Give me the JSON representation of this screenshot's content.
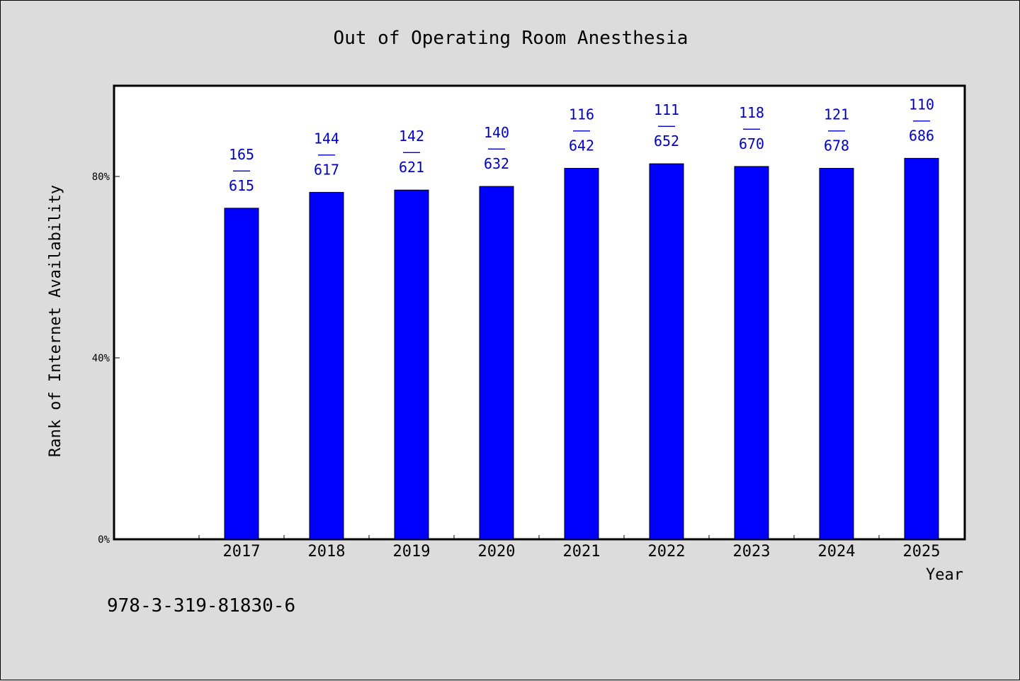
{
  "chart_data": {
    "type": "bar",
    "title": "Out of Operating Room Anesthesia",
    "xlabel": "Year",
    "ylabel": "Rank of Internet Availability",
    "categories": [
      "2017",
      "2018",
      "2019",
      "2020",
      "2021",
      "2022",
      "2023",
      "2024",
      "2025"
    ],
    "values": [
      73,
      76.5,
      77,
      77.8,
      81.8,
      82.8,
      82.2,
      81.8,
      84
    ],
    "ylim": [
      0,
      100
    ],
    "yticks": [
      0,
      40,
      80
    ],
    "ytick_labels": [
      "0%",
      "40%",
      "80%"
    ],
    "data_labels": [
      {
        "top": "165",
        "sep": "——",
        "bottom": "615"
      },
      {
        "top": "144",
        "sep": "——",
        "bottom": "617"
      },
      {
        "top": "142",
        "sep": "——",
        "bottom": "621"
      },
      {
        "top": "140",
        "sep": "——",
        "bottom": "632"
      },
      {
        "top": "116",
        "sep": "——",
        "bottom": "642"
      },
      {
        "top": "111",
        "sep": "——",
        "bottom": "652"
      },
      {
        "top": "118",
        "sep": "——",
        "bottom": "670"
      },
      {
        "top": "121",
        "sep": "——",
        "bottom": "678"
      },
      {
        "top": "110",
        "sep": "——",
        "bottom": "686"
      }
    ],
    "grid": false,
    "bar_color": "#0000ff",
    "label_color": "#0000cc",
    "plot_background": "#ffffff",
    "figure_background": "#dcdcdc"
  },
  "footer": {
    "isbn": "978-3-319-81830-6"
  }
}
